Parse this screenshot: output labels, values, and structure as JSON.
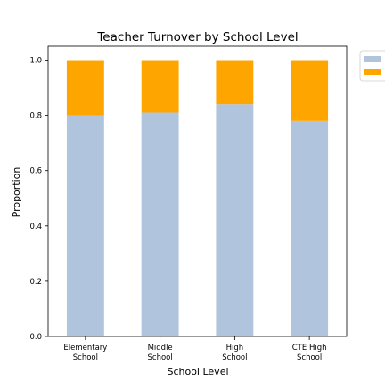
{
  "chart_data": {
    "type": "bar",
    "stacked": true,
    "title": "Teacher Turnover by School Level",
    "xlabel": "School Level",
    "ylabel": "Proportion",
    "categories": [
      "Elementary School",
      "Middle School",
      "High School",
      "CTE High School"
    ],
    "category_lines": [
      [
        "Elementary",
        "School"
      ],
      [
        "Middle",
        "School"
      ],
      [
        "High",
        "School"
      ],
      [
        "CTE High",
        "School"
      ]
    ],
    "series": [
      {
        "color": "#b0c4de",
        "values": [
          0.8,
          0.81,
          0.84,
          0.78
        ]
      },
      {
        "color": "#ffa500",
        "values": [
          0.2,
          0.19,
          0.16,
          0.22
        ]
      }
    ],
    "ylim": [
      0,
      1.05
    ],
    "yticks": [
      0.0,
      0.2,
      0.4,
      0.6,
      0.8,
      1.0
    ],
    "ytick_labels": [
      "0.0",
      "0.2",
      "0.4",
      "0.6",
      "0.8",
      "1.0"
    ],
    "grid": false,
    "legend": {
      "placement": "outside-top-right",
      "entries": [
        "",
        ""
      ]
    }
  }
}
